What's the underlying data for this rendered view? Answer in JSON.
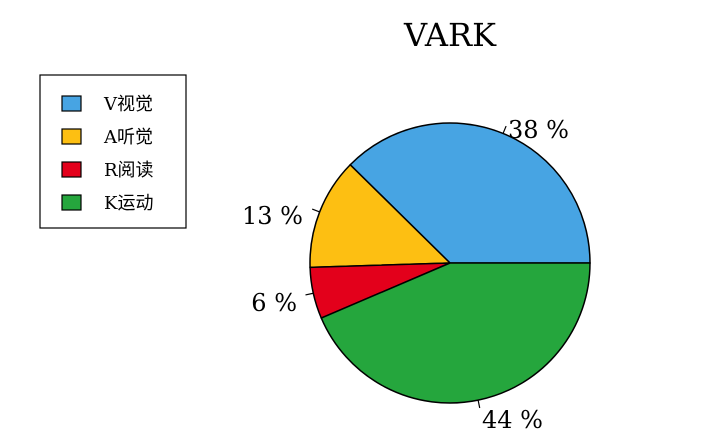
{
  "chart_data": {
    "type": "pie",
    "title": "VARK",
    "start_angle_deg": 0,
    "direction": "counterclockwise",
    "slices": [
      {
        "label": "V视觉",
        "value": 38,
        "display": "38 %",
        "color": "#47a4e3"
      },
      {
        "label": "A听觉",
        "value": 13,
        "display": "13 %",
        "color": "#fdbf12"
      },
      {
        "label": "R阅读",
        "value": 6,
        "display": "6 %",
        "color": "#e3001b"
      },
      {
        "label": "K运动",
        "value": 44,
        "display": "44 %",
        "color": "#25a63d"
      }
    ],
    "legend": {
      "placement": "top-left",
      "entries": [
        "V视觉",
        "A听觉",
        "R阅读",
        "K运动"
      ]
    }
  }
}
